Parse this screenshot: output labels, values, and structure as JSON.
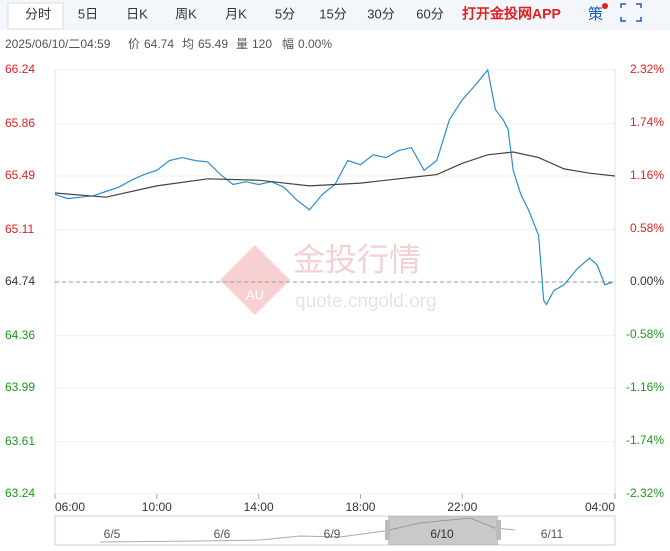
{
  "toolbar": {
    "tabs": [
      "分时",
      "5日",
      "日K",
      "周K",
      "月K",
      "5分",
      "15分",
      "30分",
      "60分"
    ],
    "promo": "打开金投网APP",
    "strategy": "策"
  },
  "info": {
    "datetime": "2025/06/10/二04:59",
    "price_label": "价",
    "price": "64.74",
    "avg_label": "均",
    "avg": "65.49",
    "volume_label": "量",
    "volume": "120",
    "change_label": "幅",
    "change": "0.00%"
  },
  "watermark": {
    "logo": "AU",
    "name": "金投行情",
    "url": "quote.cngold.org"
  },
  "navigator": {
    "labels": [
      "6/5",
      "6/6",
      "6/9",
      "6/10",
      "6/11"
    ]
  },
  "chart_data": {
    "type": "line",
    "xlim": [
      0,
      22
    ],
    "xticks": [
      {
        "value": 0,
        "label": "06:00"
      },
      {
        "value": 4,
        "label": "10:00"
      },
      {
        "value": 8,
        "label": "14:00"
      },
      {
        "value": 12,
        "label": "18:00"
      },
      {
        "value": 16,
        "label": "22:00"
      },
      {
        "value": 22,
        "label": "04:00"
      }
    ],
    "ylim": [
      63.24,
      66.24
    ],
    "yticks": [
      66.24,
      65.86,
      65.49,
      65.11,
      64.74,
      64.36,
      63.99,
      63.61,
      63.24
    ],
    "y2lim": [
      -2.32,
      2.32
    ],
    "y2ticks": [
      {
        "value": 2.32,
        "label": "2.32%"
      },
      {
        "value": 1.74,
        "label": "1.74%"
      },
      {
        "value": 1.16,
        "label": "1.16%"
      },
      {
        "value": 0.58,
        "label": "0.58%"
      },
      {
        "value": 0,
        "label": "0.00%"
      },
      {
        "value": -0.58,
        "label": "-0.58%"
      },
      {
        "value": -1.16,
        "label": "-1.16%"
      },
      {
        "value": -1.74,
        "label": "-1.74%"
      },
      {
        "value": -2.32,
        "label": "-2.32%"
      }
    ],
    "baseline": 64.74,
    "up_color": "#e02020",
    "down_color": "#1a9a1a",
    "flat_color": "#333333",
    "series": [
      {
        "color": "#2a8fd0",
        "x": [
          0,
          0.5,
          1,
          1.5,
          2,
          2.5,
          3,
          3.5,
          4,
          4.5,
          5,
          5.5,
          6,
          6.5,
          7,
          7.5,
          8,
          8.5,
          9,
          9.5,
          10,
          10.5,
          11,
          11.5,
          12,
          12.5,
          13,
          13.5,
          14,
          14.5,
          15,
          15.5,
          16,
          16.5,
          17,
          17.3,
          17.6,
          17.8,
          18,
          18.3,
          18.6,
          19,
          19.2,
          19.3,
          19.6,
          20,
          20.5,
          21,
          21.3,
          21.6,
          21.9
        ],
        "values": [
          65.36,
          65.33,
          65.34,
          65.35,
          65.38,
          65.41,
          65.46,
          65.5,
          65.53,
          65.6,
          65.62,
          65.6,
          65.59,
          65.5,
          65.43,
          65.45,
          65.43,
          65.45,
          65.41,
          65.32,
          65.25,
          65.36,
          65.43,
          65.6,
          65.57,
          65.64,
          65.62,
          65.67,
          65.69,
          65.53,
          65.6,
          65.89,
          66.03,
          66.13,
          66.24,
          65.96,
          65.89,
          65.82,
          65.53,
          65.36,
          65.25,
          65.07,
          64.61,
          64.58,
          64.68,
          64.72,
          64.83,
          64.91,
          64.86,
          64.72,
          64.74
        ]
      },
      {
        "color": "#444444",
        "x": [
          0,
          2,
          4,
          6,
          8,
          10,
          12,
          14,
          15,
          16,
          17,
          18,
          19,
          20,
          21,
          22
        ],
        "values": [
          65.37,
          65.34,
          65.42,
          65.47,
          65.46,
          65.42,
          65.44,
          65.48,
          65.5,
          65.58,
          65.64,
          65.66,
          65.62,
          65.54,
          65.51,
          65.49
        ]
      }
    ]
  }
}
